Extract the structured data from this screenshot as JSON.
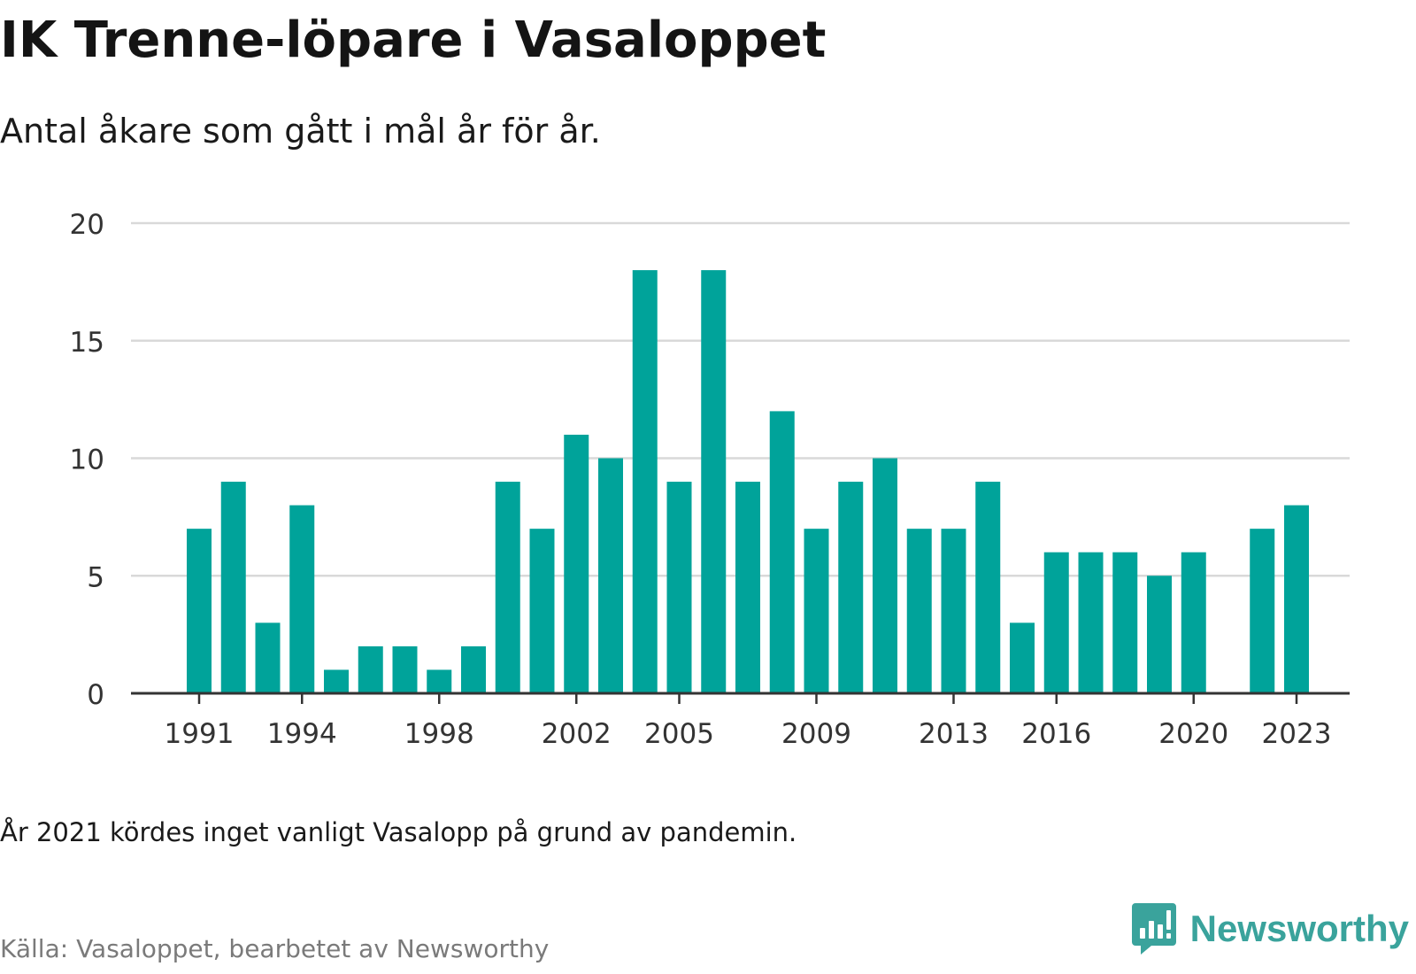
{
  "title": "IK Trenne-löpare i Vasaloppet",
  "subtitle": "Antal åkare som gått i mål år för år.",
  "note": "År 2021 kördes inget vanligt Vasalopp på grund av pandemin.",
  "source": "Källa: Vasaloppet, bearbetet av Newsworthy",
  "brand": {
    "name": "Newsworthy",
    "icon": "newsworthy-logo-icon",
    "color": "#3aa39c"
  },
  "chart_data": {
    "type": "bar",
    "x": [
      1991,
      1992,
      1993,
      1994,
      1995,
      1996,
      1997,
      1998,
      1999,
      2000,
      2001,
      2002,
      2003,
      2004,
      2005,
      2006,
      2007,
      2008,
      2009,
      2010,
      2011,
      2012,
      2013,
      2014,
      2015,
      2016,
      2017,
      2018,
      2019,
      2020,
      2021,
      2022,
      2023
    ],
    "values": [
      7,
      9,
      3,
      8,
      1,
      2,
      2,
      1,
      2,
      9,
      7,
      11,
      10,
      18,
      9,
      18,
      9,
      12,
      7,
      9,
      10,
      7,
      7,
      9,
      3,
      6,
      6,
      6,
      5,
      6,
      null,
      7,
      8
    ],
    "x_ticks": [
      1991,
      1994,
      1998,
      2002,
      2005,
      2009,
      2013,
      2016,
      2020,
      2023
    ],
    "y_ticks": [
      0,
      5,
      10,
      15,
      20
    ],
    "ylim": [
      0,
      20
    ],
    "xlabel": "",
    "ylabel": "",
    "grid": true,
    "legend": "none",
    "bar_color": "#00a39a",
    "grid_color": "#d9d9d9",
    "axis_color": "#333333"
  }
}
